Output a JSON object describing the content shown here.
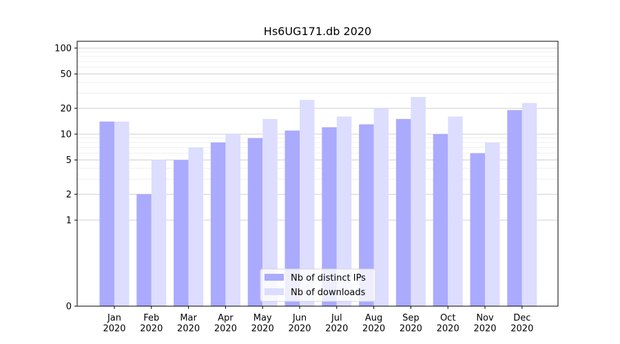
{
  "chart_data": {
    "type": "bar",
    "title": "Hs6UG171.db 2020",
    "xlabel": "",
    "ylabel": "",
    "y_scale": "symlog",
    "ylim": [
      0,
      120
    ],
    "y_ticks": [
      0,
      1,
      2,
      5,
      10,
      20,
      50,
      100
    ],
    "y_tick_labels": [
      "0",
      "1",
      "2",
      "5",
      "10",
      "20",
      "50",
      "100"
    ],
    "grid": "horizontal",
    "categories": [
      "Jan\n2020",
      "Feb\n2020",
      "Mar\n2020",
      "Apr\n2020",
      "May\n2020",
      "Jun\n2020",
      "Jul\n2020",
      "Aug\n2020",
      "Sep\n2020",
      "Oct\n2020",
      "Nov\n2020",
      "Dec\n2020"
    ],
    "category_lines": [
      [
        "Jan",
        "2020"
      ],
      [
        "Feb",
        "2020"
      ],
      [
        "Mar",
        "2020"
      ],
      [
        "Apr",
        "2020"
      ],
      [
        "May",
        "2020"
      ],
      [
        "Jun",
        "2020"
      ],
      [
        "Jul",
        "2020"
      ],
      [
        "Aug",
        "2020"
      ],
      [
        "Sep",
        "2020"
      ],
      [
        "Oct",
        "2020"
      ],
      [
        "Nov",
        "2020"
      ],
      [
        "Dec",
        "2020"
      ]
    ],
    "series": [
      {
        "name": "Nb of distinct IPs",
        "color": "#aaaaff",
        "values": [
          14,
          2,
          5,
          8,
          9,
          11,
          12,
          13,
          15,
          10,
          6,
          19
        ]
      },
      {
        "name": "Nb of downloads",
        "color": "#ddddff",
        "values": [
          14,
          5,
          7,
          10,
          15,
          25,
          16,
          20,
          27,
          16,
          8,
          23
        ]
      }
    ],
    "legend_position": "lower-center"
  }
}
